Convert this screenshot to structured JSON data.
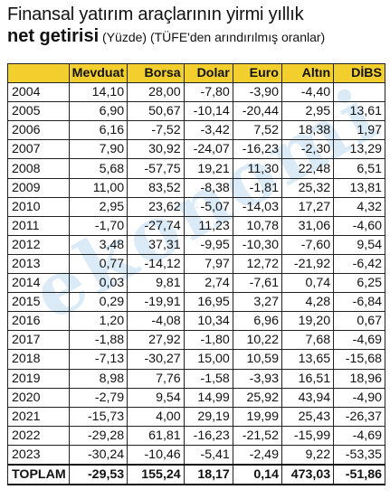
{
  "title": {
    "line1": "Finansal yatırım araçlarının yirmi yıllık",
    "line2_main": "net getirisi",
    "line2_sub": " (Yüzde) (TÜFE'den arındırılmış oranlar)"
  },
  "watermark": "ekonomi",
  "table": {
    "headers": [
      "",
      "Mevduat",
      "Borsa",
      "Dolar",
      "Euro",
      "Altın",
      "DİBS"
    ],
    "rows": [
      [
        "2004",
        "14,10",
        "28,00",
        "-7,80",
        "-3,90",
        "-4,40",
        ""
      ],
      [
        "2005",
        "6,90",
        "50,67",
        "-10,14",
        "-20,44",
        "2,95",
        "13,61"
      ],
      [
        "2006",
        "6,16",
        "-7,52",
        "-3,42",
        "7,52",
        "18,38",
        "1,97"
      ],
      [
        "2007",
        "7,90",
        "30,92",
        "-24,07",
        "-16,23",
        "-2,30",
        "13,29"
      ],
      [
        "2008",
        "5,68",
        "-57,75",
        "19,21",
        "11,30",
        "22,48",
        "6,51"
      ],
      [
        "2009",
        "11,00",
        "83,52",
        "-8,38",
        "-1,81",
        "25,32",
        "13,81"
      ],
      [
        "2010",
        "2,95",
        "23,62",
        "-5,07",
        "-14,03",
        "17,27",
        "4,32"
      ],
      [
        "2011",
        "-1,70",
        "-27,74",
        "11,23",
        "10,78",
        "31,06",
        "-4,60"
      ],
      [
        "2012",
        "3,48",
        "37,31",
        "-9,95",
        "-10,30",
        "-7,60",
        "9,54"
      ],
      [
        "2013",
        "0,77",
        "-14,12",
        "7,97",
        "12,72",
        "-21,92",
        "-6,42"
      ],
      [
        "2014",
        "0,03",
        "9,81",
        "2,74",
        "-7,61",
        "0,74",
        "6,25"
      ],
      [
        "2015",
        "0,29",
        "-19,91",
        "16,95",
        "3,27",
        "4,28",
        "-6,84"
      ],
      [
        "2016",
        "1,20",
        "-4,08",
        "10,34",
        "6,96",
        "19,20",
        "0,67"
      ],
      [
        "2017",
        "-1,88",
        "27,92",
        "-1,80",
        "10,22",
        "7,68",
        "-4,69"
      ],
      [
        "2018",
        "-7,13",
        "-30,27",
        "15,00",
        "10,59",
        "13,65",
        "-15,68"
      ],
      [
        "2019",
        "8,98",
        "7,76",
        "-1,58",
        "-3,93",
        "16,51",
        "18,96"
      ],
      [
        "2020",
        "-2,79",
        "9,54",
        "14,99",
        "25,92",
        "43,94",
        "-4,90"
      ],
      [
        "2021",
        "-15,73",
        "4,00",
        "29,19",
        "19,99",
        "25,43",
        "-26,37"
      ],
      [
        "2022",
        "-29,28",
        "61,81",
        "-16,23",
        "-21,52",
        "-15,99",
        "-4,69"
      ],
      [
        "2023",
        "-30,24",
        "-10,46",
        "-5,41",
        "-2,49",
        "9,22",
        "-53,35"
      ]
    ],
    "total": [
      "TOPLAM",
      "-29,53",
      "155,24",
      "18,17",
      "0,14",
      "473,03",
      "-51,86"
    ]
  }
}
